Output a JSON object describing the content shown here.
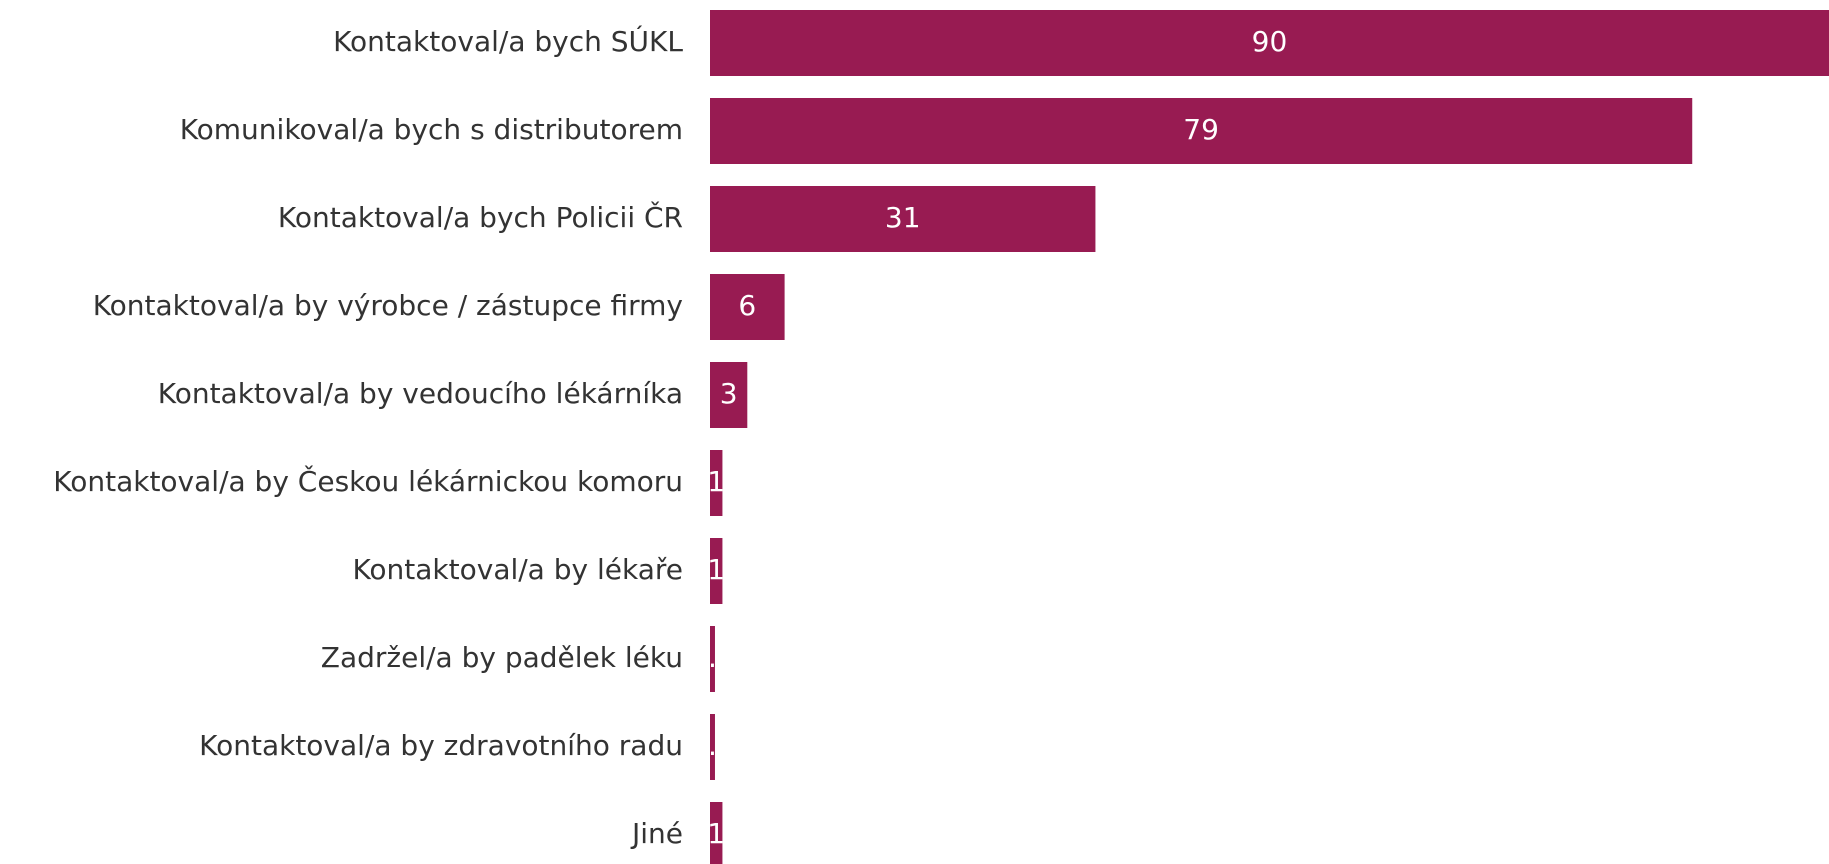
{
  "chart_data": {
    "type": "hbar",
    "categories": [
      "Kontaktoval/a bych SÚKL",
      "Komunikoval/a bych s distributorem",
      "Kontaktoval/a bych Policii ČR",
      "Kontaktoval/a by výrobce / zástupce firmy",
      "Kontaktoval/a by vedoucího lékárníka",
      "Kontaktoval/a by Českou lékárnickou komoru",
      "Kontaktoval/a by lékaře",
      "Zadržel/a by padělek léku",
      "Kontaktoval/a by zdravotního radu",
      "Jiné"
    ],
    "values": [
      90,
      79,
      31,
      6,
      3,
      1,
      1,
      0.4,
      0.4,
      1
    ],
    "color": "#981b52",
    "xlim": [
      0,
      90
    ]
  }
}
